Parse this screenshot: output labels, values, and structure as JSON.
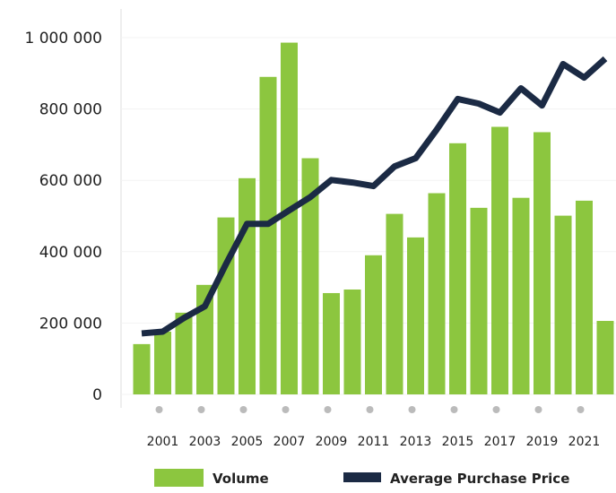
{
  "chart_data": {
    "type": "bar_line",
    "categories": [
      null,
      "2001",
      null,
      "2003",
      null,
      "2005",
      null,
      "2007",
      null,
      "2009",
      null,
      "2011",
      null,
      "2013",
      null,
      "2015",
      null,
      "2017",
      null,
      "2019",
      null,
      "2021",
      null
    ],
    "series": [
      {
        "name": "Volume",
        "type": "bar",
        "color": "#8cc63f",
        "values": [
          141000,
          176000,
          229000,
          307000,
          496000,
          606000,
          890000,
          986000,
          662000,
          284000,
          294000,
          390000,
          506000,
          440000,
          564000,
          704000,
          523000,
          750000,
          551000,
          735000,
          501000,
          543000,
          206000
        ]
      },
      {
        "name": "Average Purchase Price",
        "type": "line",
        "color": "#1b2a44",
        "values": [
          171000,
          176000,
          214000,
          247000,
          365000,
          478000,
          478000,
          516000,
          553000,
          601000,
          594000,
          584000,
          639000,
          662000,
          742000,
          828000,
          815000,
          790000,
          858000,
          810000,
          926000,
          888000,
          941000
        ]
      }
    ],
    "ylim": [
      0,
      1000000
    ],
    "yticks": [
      0,
      {
        "value": 200000,
        "label": "200 000"
      },
      {
        "value": 400000,
        "label": "400 000"
      },
      {
        "value": 600000,
        "label": "600 000"
      },
      {
        "value": 800000,
        "label": "800 000"
      },
      {
        "value": 1000000,
        "label": "1 000 000"
      }
    ],
    "legend": "bottom"
  }
}
